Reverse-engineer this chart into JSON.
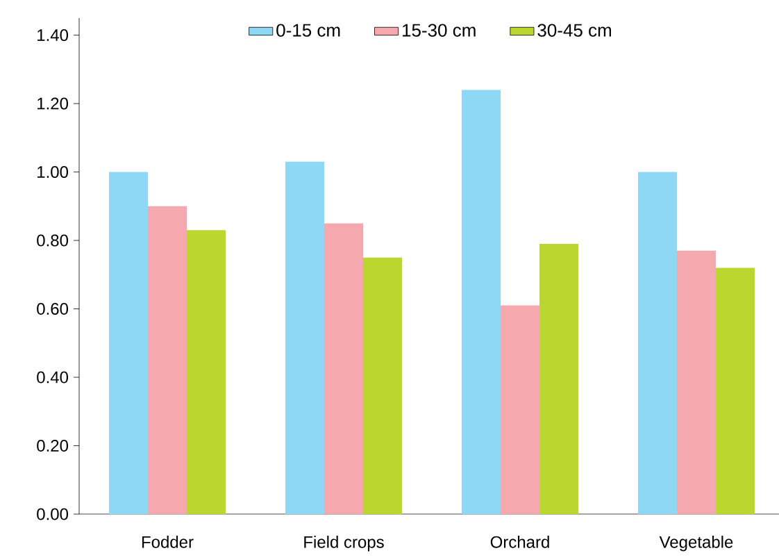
{
  "chart_data": {
    "type": "bar",
    "categories": [
      "Fodder",
      "Field crops",
      "Orchard",
      "Vegetable"
    ],
    "series": [
      {
        "name": "0-15 cm",
        "color": "#8fd8f5",
        "values": [
          1.0,
          1.03,
          1.24,
          1.0
        ]
      },
      {
        "name": "15-30 cm",
        "color": "#f5a9ae",
        "values": [
          0.9,
          0.85,
          0.61,
          0.77
        ]
      },
      {
        "name": "30-45 cm",
        "color": "#bcd630",
        "values": [
          0.83,
          0.75,
          0.79,
          0.72
        ]
      }
    ],
    "ylim": [
      0,
      1.45
    ],
    "yticks": [
      {
        "value": 0,
        "label": "0.00"
      },
      {
        "value": 0.2,
        "label": "0.20"
      },
      {
        "value": 0.4,
        "label": "0.40"
      },
      {
        "value": 0.6,
        "label": "0.60"
      },
      {
        "value": 0.8,
        "label": "0.80"
      },
      {
        "value": 1.0,
        "label": "1.00"
      },
      {
        "value": 1.2,
        "label": "1.20"
      },
      {
        "value": 1.4,
        "label": "1.40"
      }
    ],
    "grid": false,
    "legend": "top"
  }
}
